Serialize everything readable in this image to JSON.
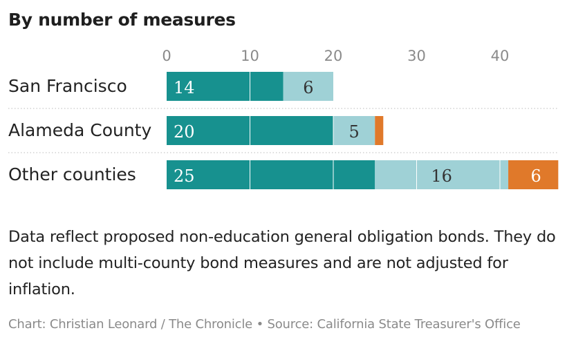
{
  "title": "By number of measures",
  "note": "Data reflect proposed non-education general obligation bonds. They do not include multi-county bond measures and are not adjusted for inflation.",
  "credit": "Chart: Christian Leonard / The Chronicle • Source: California State Treasurer's Office",
  "colors": {
    "teal": "#17918f",
    "lightblue": "#9fd1d6",
    "orange": "#e0792a",
    "gridline": "#ffffff",
    "separator": "#c8c8c8"
  },
  "chart_data": {
    "type": "bar",
    "orientation": "horizontal",
    "stacked": true,
    "categories": [
      "San Francisco",
      "Alameda County",
      "Other counties"
    ],
    "series": [
      {
        "color_key": "teal",
        "values": [
          14,
          20,
          25
        ]
      },
      {
        "color_key": "lightblue",
        "values": [
          6,
          5,
          16
        ]
      },
      {
        "color_key": "orange",
        "values": [
          0,
          1,
          6
        ]
      }
    ],
    "data_labels": [
      [
        "14",
        "20",
        "25"
      ],
      [
        "6",
        "5",
        "16"
      ],
      [
        "",
        "",
        "6"
      ]
    ],
    "xticks": [
      0,
      10,
      20,
      30,
      40
    ],
    "xlim": [
      0,
      47
    ],
    "grid": true
  }
}
